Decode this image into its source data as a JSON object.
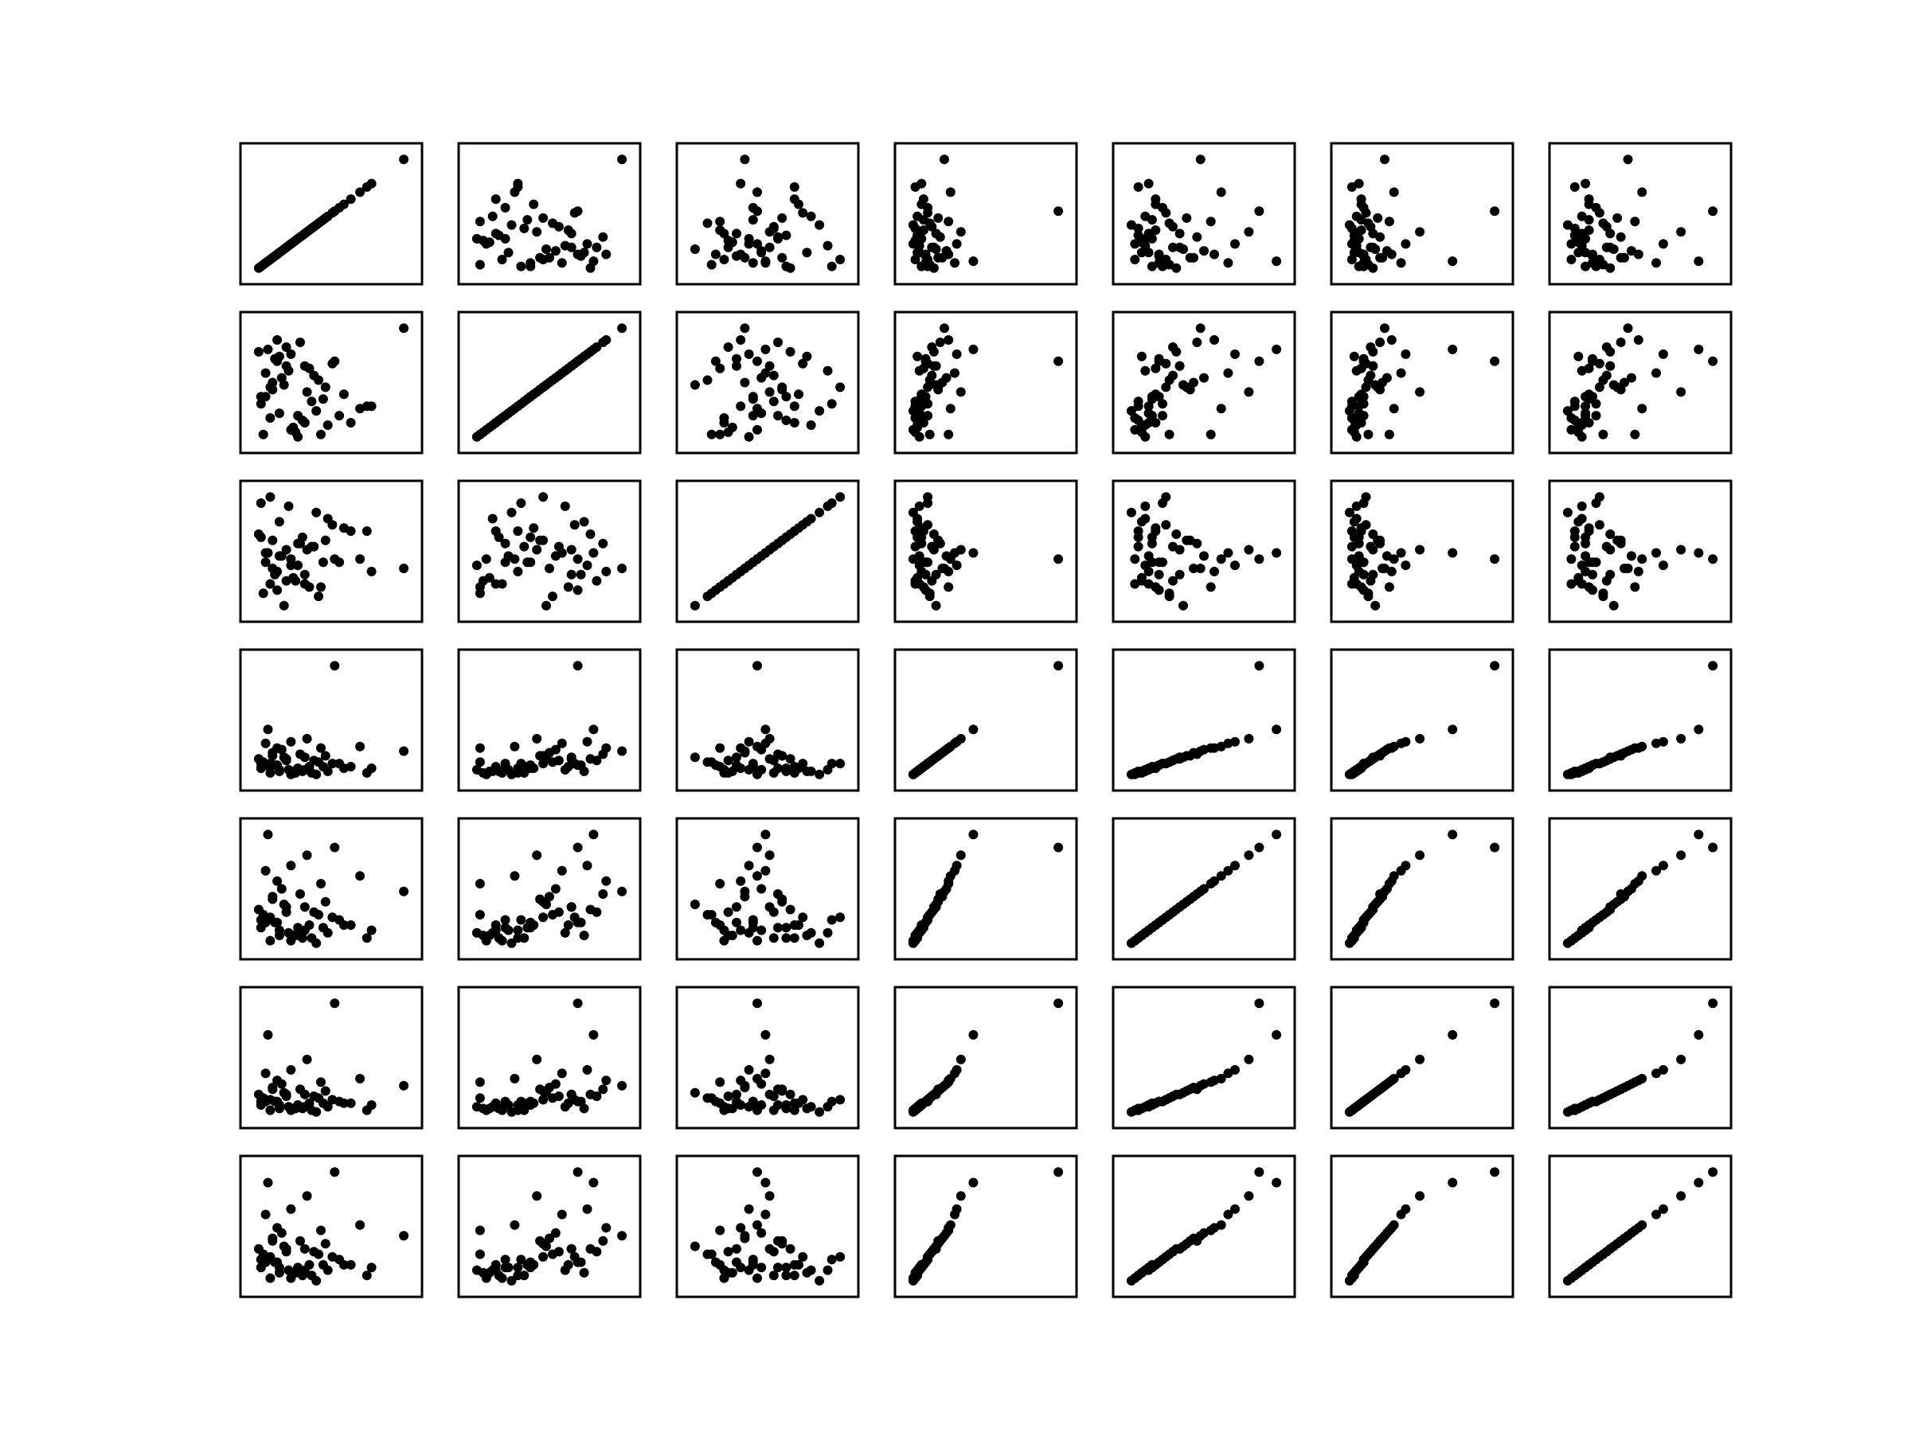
{
  "chart_data": {
    "type": "scatter",
    "layout": "scatter-matrix",
    "grid": false,
    "title": "",
    "xlabel": "",
    "ylabel": "",
    "variables": [
      "",
      "",
      "",
      "",
      "",
      "",
      ""
    ],
    "tick_labels": "none",
    "marker": {
      "shape": "circle",
      "color": "#000000"
    },
    "samples": {
      "v0": [
        3.5,
        4.1,
        2.2,
        4.8,
        3.0,
        5.6,
        2.7,
        4.4,
        3.3,
        6.1,
        2.4,
        3.8,
        5.0,
        2.9,
        4.6,
        3.1,
        7.0,
        2.1,
        3.6,
        4.2,
        5.3,
        2.6,
        3.9,
        4.9,
        2.3,
        3.4,
        6.5,
        2.8,
        4.0,
        3.2,
        5.8,
        2.5,
        3.7,
        4.5,
        2.2,
        8.4,
        3.0,
        4.3,
        2.7,
        5.1,
        3.5,
        2.4,
        4.7,
        3.8,
        2.9,
        6.8,
        3.3,
        4.1,
        2.6,
        5.4
      ],
      "v1": [
        2.1,
        4.8,
        3.5,
        1.9,
        5.2,
        2.7,
        4.1,
        3.3,
        5.6,
        2.4,
        4.5,
        1.8,
        3.9,
        5.0,
        2.9,
        4.3,
        3.1,
        5.4,
        2.2,
        3.7,
        4.9,
        2.6,
        5.8,
        3.4,
        1.9,
        4.6,
        3.0,
        5.1,
        2.5,
        4.0,
        3.6,
        5.5,
        2.0,
        4.4,
        3.2,
        6.4,
        2.8,
        4.7,
        3.8,
        2.3,
        5.3,
        3.5,
        4.2,
        2.7,
        5.9,
        3.1,
        4.8,
        2.4,
        3.9,
        5.0
      ],
      "v2": [
        5.1,
        4.6,
        5.8,
        4.2,
        6.3,
        5.0,
        4.8,
        5.5,
        4.4,
        6.0,
        5.3,
        4.9,
        5.7,
        4.1,
        6.6,
        5.2,
        4.7,
        5.9,
        4.5,
        5.4,
        6.2,
        4.3,
        5.6,
        5.0,
        4.0,
        6.8,
        5.1,
        4.6,
        5.8,
        3.6,
        6.1,
        5.3,
        4.4,
        5.5,
        6.9,
        4.8,
        5.2,
        4.2,
        5.7,
        6.4,
        4.9,
        5.0,
        3.9,
        5.6,
        4.7,
        6.0,
        5.4,
        4.3,
        7.1,
        5.1
      ],
      "v3": [
        1.2,
        2.3,
        1.6,
        2.9,
        1.4,
        1.9,
        2.6,
        1.3,
        2.1,
        1.7,
        3.2,
        1.5,
        2.4,
        1.8,
        1.2,
        2.8,
        1.6,
        2.2,
        1.4,
        3.5,
        1.9,
        1.3,
        2.5,
        1.7,
        2.0,
        1.5,
        3.0,
        1.8,
        1.4,
        2.3,
        1.6,
        4.1,
        1.3,
        2.1,
        1.9,
        2.7,
        1.5,
        1.7,
        2.4,
        1.4,
        3.3,
        1.8,
        2.0,
        1.6,
        2.9,
        1.3,
        2.2,
        1.5,
        1.9,
        8.2
      ],
      "v4": [
        2.3,
        3.6,
        2.8,
        4.5,
        2.5,
        3.1,
        4.0,
        2.4,
        3.4,
        2.9,
        5.0,
        2.6,
        3.8,
        3.0,
        2.2,
        4.3,
        2.7,
        3.5,
        2.5,
        5.6,
        3.2,
        2.3,
        4.1,
        2.8,
        3.3,
        2.6,
        4.8,
        3.0,
        2.4,
        3.7,
        2.9,
        6.4,
        2.5,
        3.4,
        3.1,
        4.2,
        2.7,
        2.9,
        3.9,
        2.6,
        5.2,
        3.0,
        3.3,
        2.8,
        4.6,
        2.4,
        3.6,
        2.7,
        3.2,
        5.9
      ],
      "v5": [
        1.5,
        2.4,
        1.8,
        3.1,
        1.6,
        2.0,
        2.8,
        1.5,
        2.3,
        1.9,
        3.6,
        1.7,
        2.6,
        2.0,
        1.4,
        3.0,
        1.8,
        2.4,
        1.6,
        4.4,
        2.1,
        1.5,
        2.7,
        1.9,
        2.2,
        1.7,
        3.3,
        2.0,
        1.6,
        2.5,
        1.9,
        5.8,
        1.6,
        2.3,
        2.0,
        2.9,
        1.8,
        1.9,
        2.7,
        1.7,
        3.8,
        2.0,
        2.2,
        1.8,
        3.2,
        1.5,
        2.4,
        1.7,
        2.1,
        7.6
      ],
      "v6": [
        2.0,
        3.1,
        2.4,
        3.8,
        2.2,
        2.7,
        3.5,
        2.1,
        3.0,
        2.5,
        4.4,
        2.3,
        3.3,
        2.6,
        1.9,
        3.7,
        2.4,
        3.1,
        2.2,
        5.1,
        2.8,
        2.0,
        3.4,
        2.5,
        2.9,
        2.3,
        4.0,
        2.6,
        2.1,
        3.2,
        2.5,
        5.6,
        2.2,
        3.0,
        2.7,
        3.6,
        2.4,
        2.5,
        3.4,
        2.3,
        4.6,
        2.6,
        2.9,
        2.4,
        3.9,
        2.1,
        3.1,
        2.3,
        2.8,
        6.0
      ]
    }
  }
}
